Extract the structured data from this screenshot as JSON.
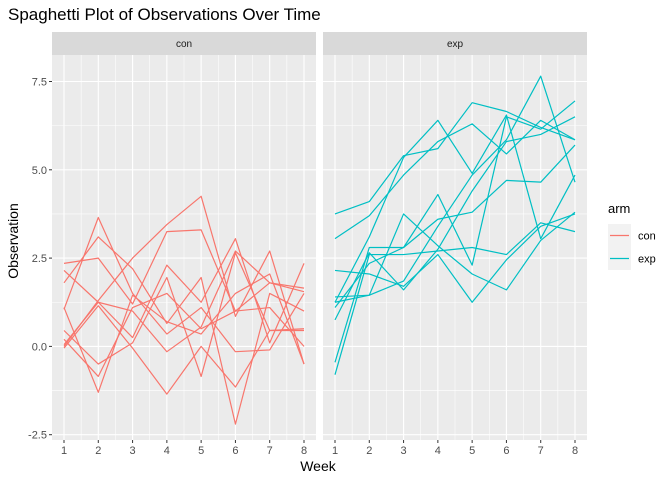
{
  "chart_data": {
    "type": "line",
    "title": "Spaghetti Plot of Observations Over Time",
    "xlabel": "Week",
    "ylabel": "Observation",
    "x": [
      1,
      2,
      3,
      4,
      5,
      6,
      7,
      8
    ],
    "xlim": [
      0.65,
      8.35
    ],
    "ylim": [
      -2.65,
      8.25
    ],
    "yticks": [
      -2.5,
      0.0,
      2.5,
      5.0,
      7.5
    ],
    "ytick_labels": [
      "-2.5",
      "0.0",
      "2.5",
      "5.0",
      "7.5"
    ],
    "grid": true,
    "facet_var": "arm",
    "panels": [
      {
        "label": "con",
        "color": "#F8766D",
        "series": [
          {
            "values": [
              0.2,
              -0.85,
              1.1,
              1.5,
              0.5,
              1.0,
              1.1,
              0.0
            ]
          },
          {
            "values": [
              2.35,
              2.5,
              1.2,
              3.25,
              3.3,
              1.0,
              1.8,
              1.55
            ]
          },
          {
            "values": [
              1.05,
              3.65,
              1.5,
              0.35,
              1.1,
              -0.15,
              -0.1,
              1.5
            ]
          },
          {
            "values": [
              0.0,
              1.3,
              2.5,
              3.45,
              4.25,
              0.85,
              2.7,
              -0.5
            ]
          },
          {
            "values": [
              0.45,
              -0.5,
              0.1,
              1.95,
              -0.85,
              2.65,
              0.45,
              0.45
            ]
          },
          {
            "values": [
              2.15,
              1.25,
              0.25,
              2.3,
              1.25,
              3.05,
              0.1,
              2.35
            ]
          },
          {
            "values": [
              1.8,
              3.1,
              2.2,
              0.65,
              1.95,
              -2.2,
              1.5,
              1.0
            ]
          },
          {
            "values": [
              0.05,
              1.25,
              1.0,
              -0.15,
              0.55,
              2.7,
              1.8,
              1.65
            ]
          },
          {
            "values": [
              -0.05,
              1.15,
              -0.05,
              -1.35,
              0.0,
              -1.15,
              0.45,
              0.5
            ]
          },
          {
            "values": [
              1.1,
              -1.3,
              1.45,
              0.7,
              0.35,
              1.5,
              2.05,
              -0.5
            ]
          }
        ]
      },
      {
        "label": "exp",
        "color": "#00BFC4",
        "series": [
          {
            "values": [
              3.75,
              4.1,
              5.4,
              5.6,
              6.9,
              6.65,
              6.2,
              5.85
            ]
          },
          {
            "values": [
              3.05,
              3.7,
              4.85,
              5.8,
              6.3,
              5.45,
              6.4,
              5.85
            ]
          },
          {
            "values": [
              1.1,
              2.35,
              2.8,
              3.6,
              3.8,
              4.7,
              4.65,
              5.7
            ]
          },
          {
            "values": [
              2.15,
              2.05,
              1.7,
              2.6,
              1.25,
              2.45,
              3.4,
              3.75
            ]
          },
          {
            "values": [
              -0.45,
              2.8,
              2.8,
              4.3,
              2.3,
              6.5,
              6.15,
              6.95
            ]
          },
          {
            "values": [
              1.25,
              1.45,
              3.75,
              2.85,
              2.05,
              1.6,
              3.0,
              3.8
            ]
          },
          {
            "values": [
              -0.8,
              2.6,
              2.6,
              2.7,
              2.8,
              2.6,
              3.5,
              3.25
            ]
          },
          {
            "values": [
              0.75,
              2.65,
              1.6,
              2.75,
              4.4,
              5.8,
              6.0,
              6.5
            ]
          },
          {
            "values": [
              1.4,
              1.45,
              1.85,
              3.4,
              4.85,
              5.85,
              7.65,
              4.65
            ]
          },
          {
            "values": [
              1.25,
              3.1,
              5.35,
              6.4,
              4.9,
              6.55,
              3.05,
              4.85
            ]
          }
        ]
      }
    ],
    "legend": {
      "title": "arm",
      "placement": "right",
      "entries": [
        {
          "label": "con",
          "color": "#F8766D"
        },
        {
          "label": "exp",
          "color": "#00BFC4"
        }
      ]
    },
    "panel_background": "#EBEBEB",
    "strip_background": "#D9D9D9",
    "grid_color": "#FFFFFF"
  }
}
